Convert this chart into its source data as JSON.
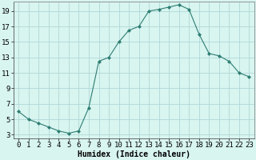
{
  "x": [
    0,
    1,
    2,
    3,
    4,
    5,
    6,
    7,
    8,
    9,
    10,
    11,
    12,
    13,
    14,
    15,
    16,
    17,
    18,
    19,
    20,
    21,
    22,
    23
  ],
  "y": [
    6,
    5,
    4.5,
    4,
    3.5,
    3.2,
    3.5,
    6.5,
    12.5,
    13,
    15,
    16.5,
    17,
    19,
    19.2,
    19.5,
    19.8,
    19.2,
    16,
    13.5,
    13.2,
    12.5,
    11,
    10.5
  ],
  "line_color": "#2e7d72",
  "marker": "D",
  "marker_size": 2,
  "bg_color": "#d8f5f0",
  "grid_color": "#b0d8d8",
  "xlabel": "Humidex (Indice chaleur)",
  "xlim": [
    -0.5,
    23.5
  ],
  "ylim": [
    2.5,
    20.2
  ],
  "yticks": [
    3,
    5,
    7,
    9,
    11,
    13,
    15,
    17,
    19
  ],
  "xtick_labels": [
    "0",
    "1",
    "2",
    "3",
    "4",
    "5",
    "6",
    "7",
    "8",
    "9",
    "10",
    "11",
    "12",
    "13",
    "14",
    "15",
    "16",
    "17",
    "18",
    "19",
    "20",
    "21",
    "22",
    "23"
  ],
  "xlabel_fontsize": 7,
  "tick_fontsize": 6.5
}
